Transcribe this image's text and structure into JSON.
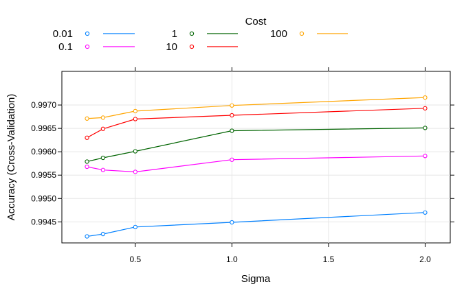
{
  "chart_data": {
    "type": "line",
    "legend_title": "Cost",
    "legend_position": "top",
    "xlabel": "Sigma",
    "ylabel": "Accuracy (Cross-Validation)",
    "xlim": [
      0.12,
      2.13
    ],
    "ylim": [
      0.99405,
      0.99772
    ],
    "xticks": [
      0.5,
      1.0,
      1.5,
      2.0
    ],
    "xtick_labels": [
      "0.5",
      "1.0",
      "1.5",
      "2.0"
    ],
    "yticks": [
      0.9945,
      0.995,
      0.9955,
      0.996,
      0.9965,
      0.997
    ],
    "ytick_labels": [
      "0.9945",
      "0.9950",
      "0.9955",
      "0.9960",
      "0.9965",
      "0.9970"
    ],
    "grid": true,
    "x": [
      0.25,
      0.333,
      0.5,
      1.0,
      2.0
    ],
    "series": [
      {
        "name": "0.01",
        "color": "#0080ff",
        "values": [
          0.99419,
          0.99424,
          0.99439,
          0.99449,
          0.9947
        ]
      },
      {
        "name": "0.1",
        "color": "#ff00ff",
        "values": [
          0.99568,
          0.99561,
          0.99557,
          0.99583,
          0.99591
        ]
      },
      {
        "name": "1",
        "color": "#006400",
        "values": [
          0.99579,
          0.99587,
          0.99601,
          0.99645,
          0.99651
        ]
      },
      {
        "name": "10",
        "color": "#ff0000",
        "values": [
          0.9963,
          0.99649,
          0.9967,
          0.99678,
          0.99693
        ]
      },
      {
        "name": "100",
        "color": "#ffa500",
        "values": [
          0.99671,
          0.99673,
          0.99687,
          0.99699,
          0.99716
        ]
      }
    ]
  }
}
